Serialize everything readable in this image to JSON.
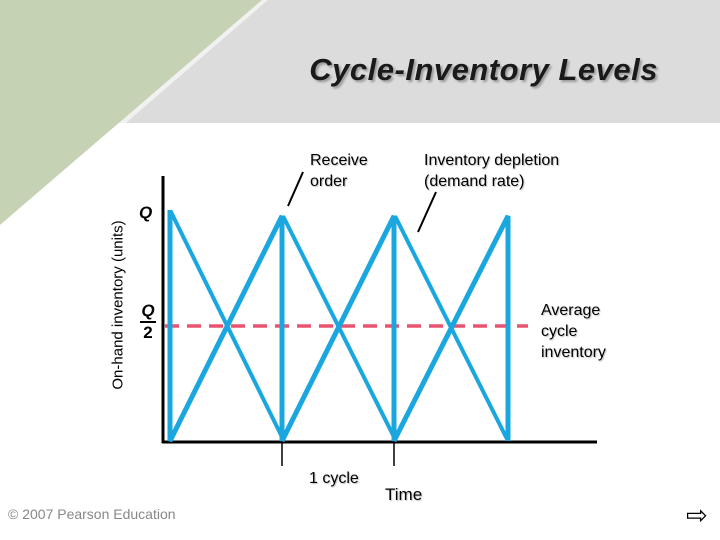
{
  "slide": {
    "title": "Cycle-Inventory Levels",
    "footer": "© 2007 Pearson Education",
    "next_icon": "right-arrow-icon"
  },
  "diagram": {
    "y_axis_label": "On-hand inventory (units)",
    "x_axis_label": "Time",
    "q_label": "Q",
    "half_q_numerator": "Q",
    "half_q_denominator": "2",
    "receive_order_line1": "Receive",
    "receive_order_line2": "order",
    "depletion_line1": "Inventory depletion",
    "depletion_line2": "(demand rate)",
    "average_line1": "Average",
    "average_line2": "cycle",
    "average_line3": "inventory",
    "cycle_label": "1 cycle"
  },
  "colors": {
    "inventory_line": "#1aa7e0",
    "average_dashed_line": "#e8536f",
    "axis": "#000000",
    "background_band": "#dcdcdc",
    "corner_shape": "#c6d2b4"
  }
}
